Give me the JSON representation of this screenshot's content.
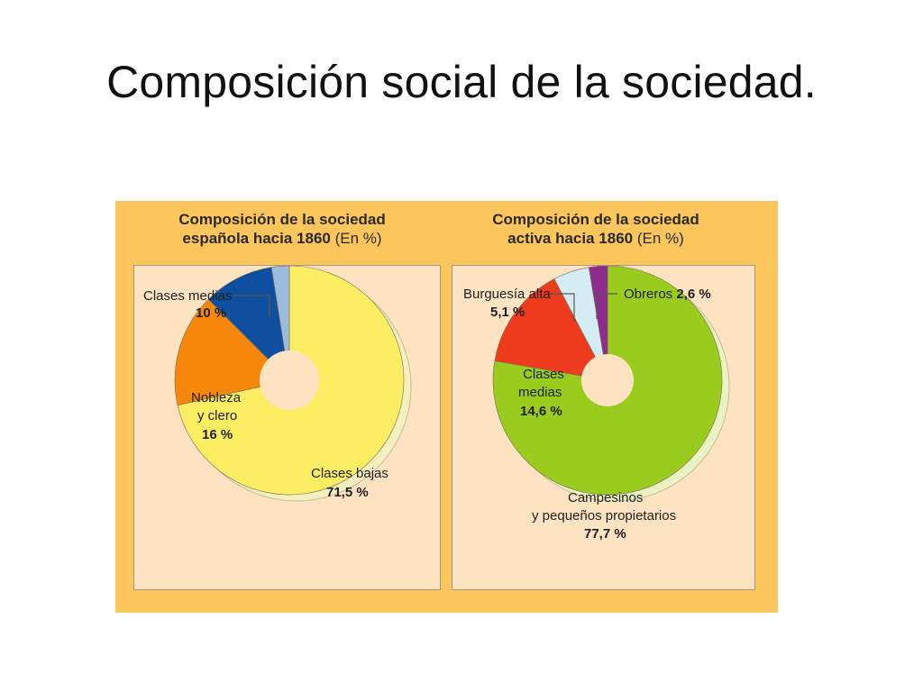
{
  "slide": {
    "title": "Composición social de la sociedad."
  },
  "chart_data": [
    {
      "type": "pie",
      "title_line1": "Composición de la sociedad",
      "title_line2": "española hacia 1860",
      "unit": "(En %)",
      "slices": [
        {
          "label": "Clases bajas",
          "value": 71.5,
          "value_label": "71,5 %",
          "color": "#fcee62"
        },
        {
          "label": "Nobleza y clero",
          "label_lines": [
            "Nobleza",
            "y clero"
          ],
          "value": 16,
          "value_label": "16 %",
          "color": "#f6870a"
        },
        {
          "label": "Clases medias",
          "value": 10,
          "value_label": "10 %",
          "color": "#0e4fa0"
        },
        {
          "label": "",
          "value": 2.5,
          "value_label": "",
          "color": "#9cbadb"
        }
      ]
    },
    {
      "type": "pie",
      "title_line1": "Composición de la sociedad",
      "title_line2": "activa hacia 1860",
      "unit": "(En %)",
      "slices": [
        {
          "label": "Campesinos y pequeños propietarios",
          "label_lines": [
            "Campesinos",
            "y pequeños propietarios"
          ],
          "value": 77.7,
          "value_label": "77,7 %",
          "color": "#99cc1c"
        },
        {
          "label": "Clases medias",
          "label_lines": [
            "Clases",
            "medias"
          ],
          "value": 14.6,
          "value_label": "14,6 %",
          "color": "#ef3b1d"
        },
        {
          "label": "Burguesía alta",
          "value": 5.1,
          "value_label": "5,1 %",
          "color": "#d6ecf4"
        },
        {
          "label": "Obreros",
          "value": 2.6,
          "value_label": "2,6 %",
          "color": "#8e2d8f"
        }
      ]
    }
  ]
}
